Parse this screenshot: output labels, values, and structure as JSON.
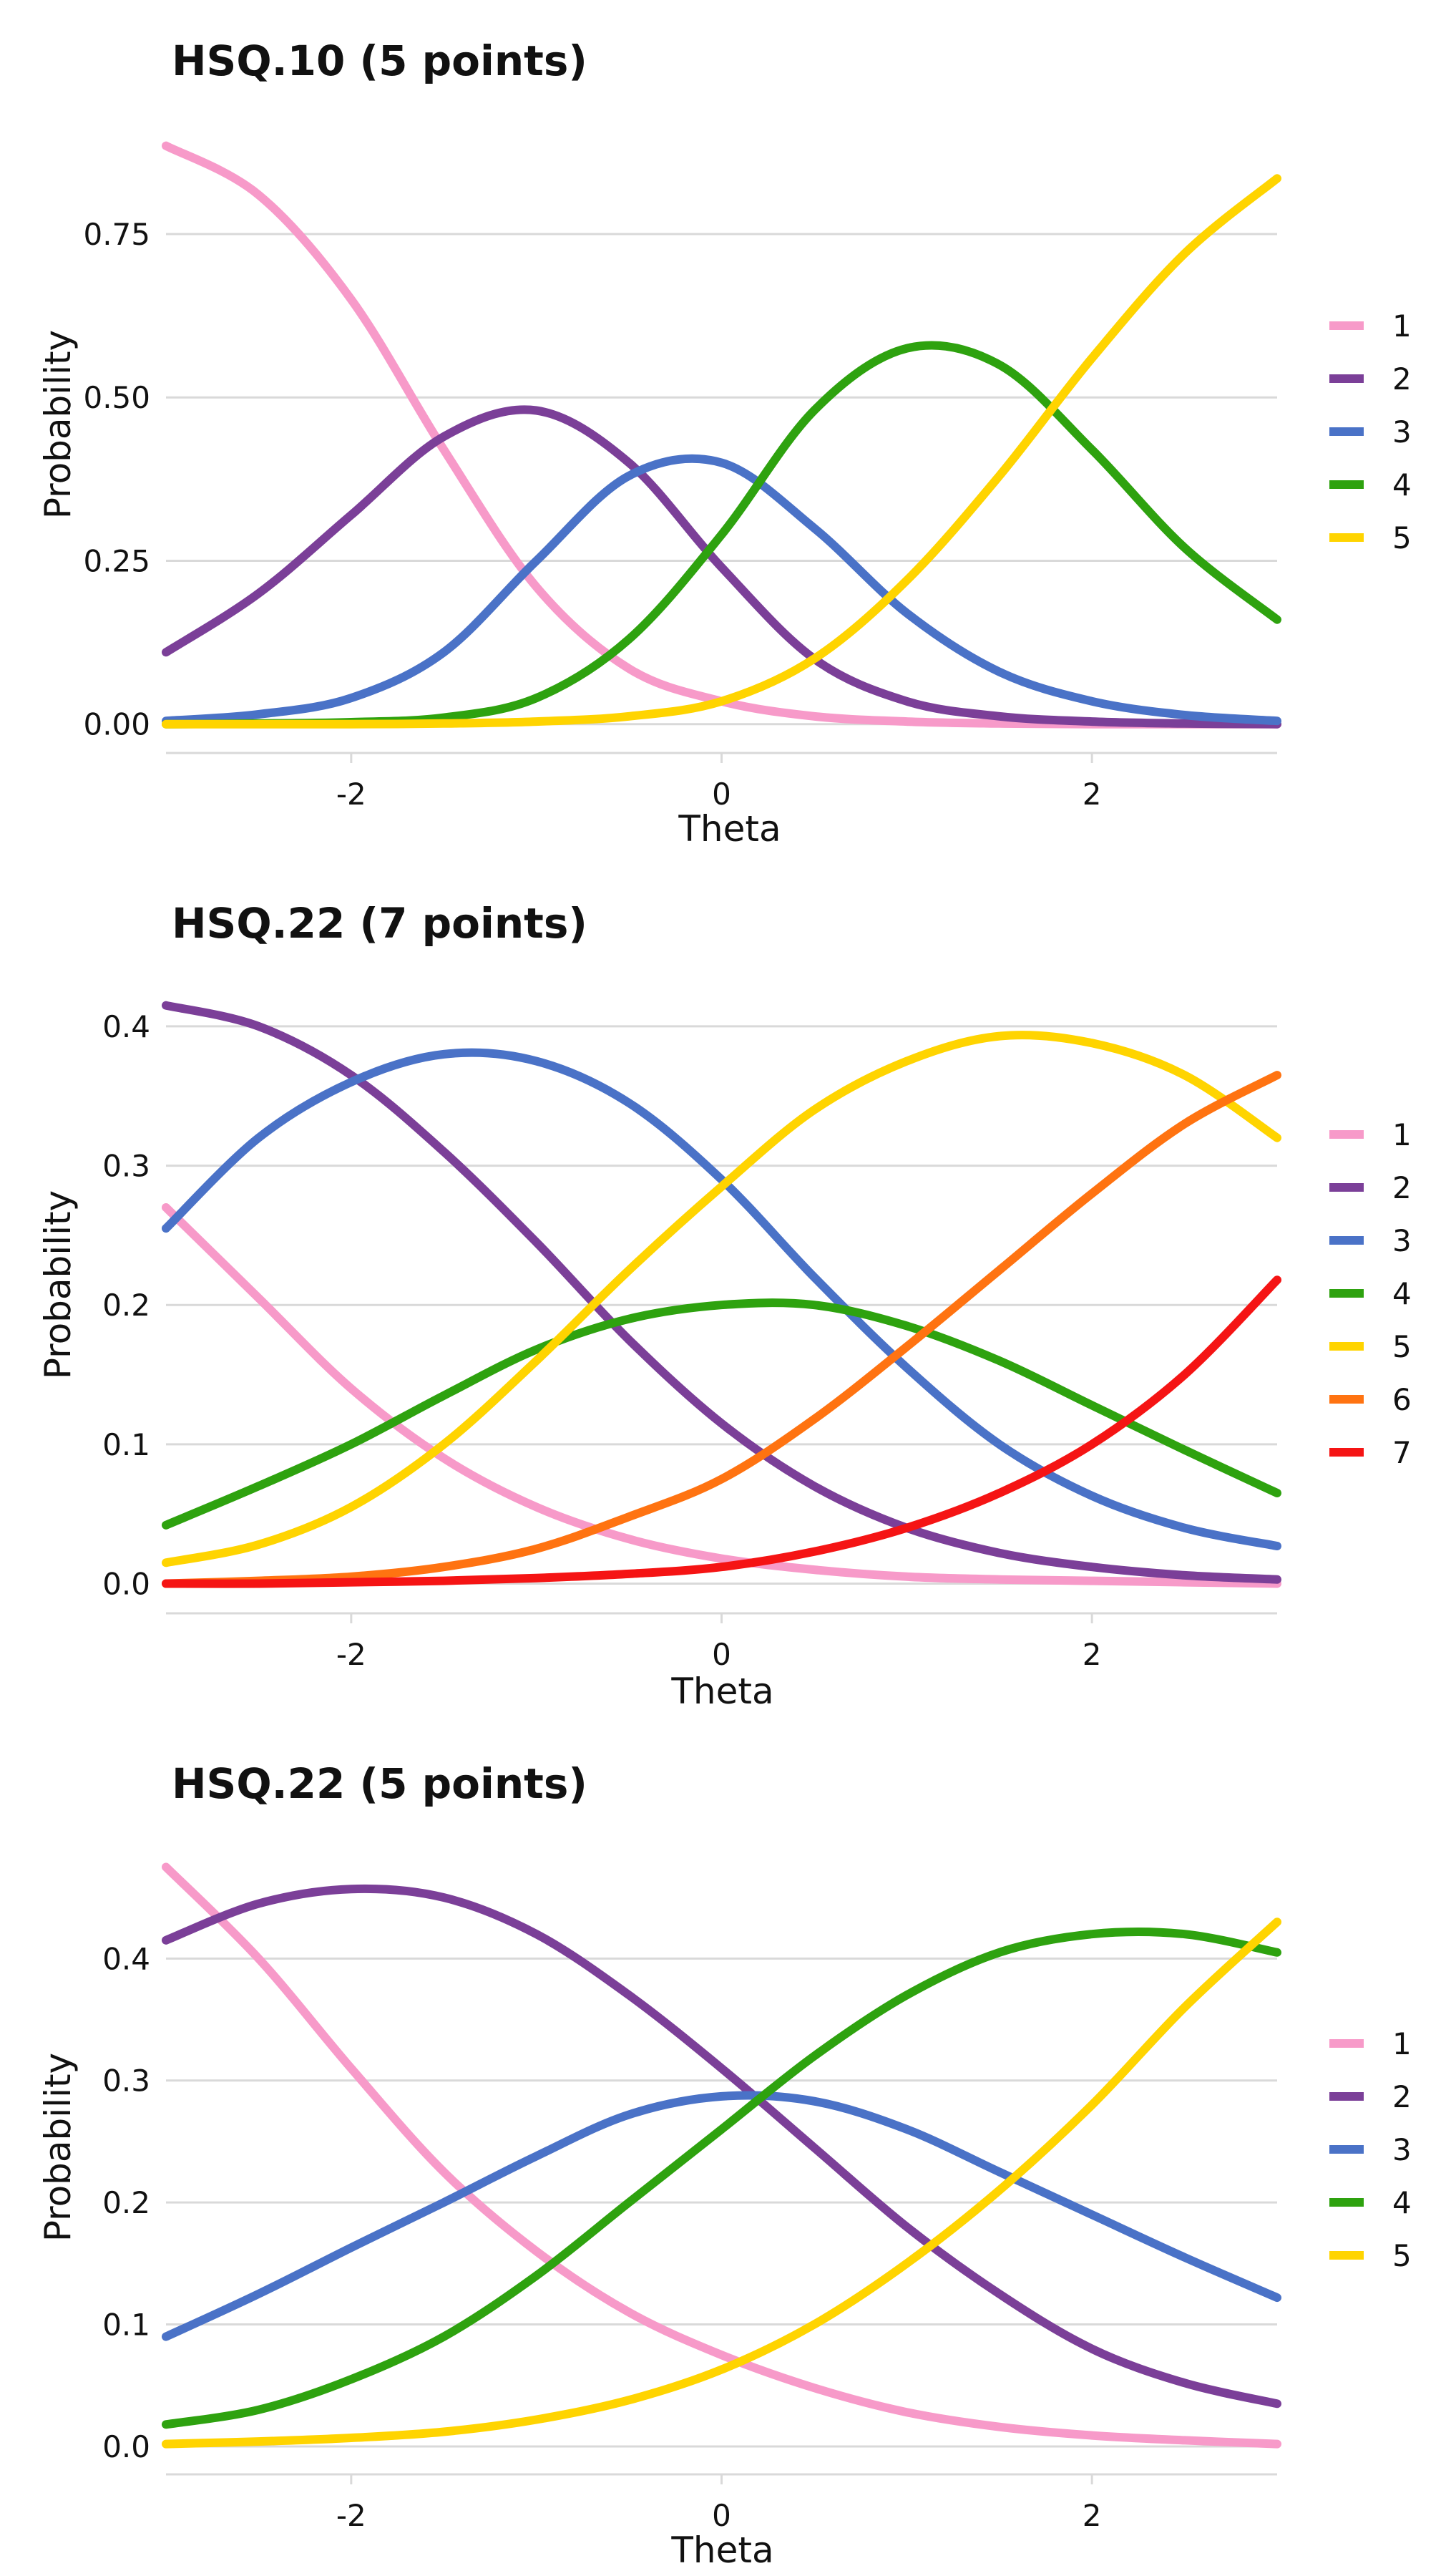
{
  "colors": {
    "c1": "#f79ac9",
    "c2": "#7b3f98",
    "c3": "#4a72c7",
    "c4": "#2ea20f",
    "c5": "#ffd400",
    "c6": "#ff7311",
    "c7": "#f51414",
    "grid": "#d9d9d9",
    "text": "#111111"
  },
  "chart_data": [
    {
      "type": "line",
      "title": "HSQ.10 (5 points)",
      "xlabel": "Theta",
      "ylabel": "Probability",
      "xlim": [
        -3,
        3
      ],
      "ylim": [
        -0.02,
        0.9
      ],
      "xticks": [
        -2,
        0,
        2
      ],
      "xtick_labels": [
        "-2",
        "0",
        "2"
      ],
      "yticks": [
        0,
        0.25,
        0.5,
        0.75
      ],
      "ytick_labels": [
        "0.00",
        "0.25",
        "0.50",
        "0.75"
      ],
      "legend_position": "right",
      "x": [
        -3,
        -2.5,
        -2,
        -1.5,
        -1,
        -0.5,
        0,
        0.5,
        1,
        1.5,
        2,
        2.5,
        3
      ],
      "series": [
        {
          "name": "1",
          "color": "#f79ac9",
          "values": [
            0.885,
            0.81,
            0.65,
            0.42,
            0.21,
            0.085,
            0.035,
            0.012,
            0.004,
            0.001,
            0.0,
            0.0,
            0.0
          ]
        },
        {
          "name": "2",
          "color": "#7b3f98",
          "values": [
            0.11,
            0.2,
            0.32,
            0.44,
            0.48,
            0.4,
            0.24,
            0.1,
            0.035,
            0.012,
            0.004,
            0.001,
            0.0
          ]
        },
        {
          "name": "3",
          "color": "#4a72c7",
          "values": [
            0.005,
            0.015,
            0.04,
            0.11,
            0.25,
            0.38,
            0.4,
            0.3,
            0.17,
            0.08,
            0.035,
            0.014,
            0.005
          ]
        },
        {
          "name": "4",
          "color": "#2ea20f",
          "values": [
            0.0,
            0.001,
            0.003,
            0.01,
            0.04,
            0.13,
            0.29,
            0.48,
            0.575,
            0.55,
            0.42,
            0.27,
            0.16
          ]
        },
        {
          "name": "5",
          "color": "#ffd400",
          "values": [
            0.0,
            0.0,
            0.0,
            0.001,
            0.004,
            0.012,
            0.035,
            0.1,
            0.22,
            0.38,
            0.56,
            0.72,
            0.835
          ]
        }
      ]
    },
    {
      "type": "line",
      "title": "HSQ.22 (7 points)",
      "xlabel": "Theta",
      "ylabel": "Probability",
      "xlim": [
        -3,
        3
      ],
      "ylim": [
        -0.01,
        0.42
      ],
      "xticks": [
        -2,
        0,
        2
      ],
      "xtick_labels": [
        "-2",
        "0",
        "2"
      ],
      "yticks": [
        0,
        0.1,
        0.2,
        0.3,
        0.4
      ],
      "ytick_labels": [
        "0.0",
        "0.1",
        "0.2",
        "0.3",
        "0.4"
      ],
      "legend_position": "right",
      "x": [
        -3,
        -2.5,
        -2,
        -1.5,
        -1,
        -0.5,
        0,
        0.5,
        1,
        1.5,
        2,
        2.5,
        3
      ],
      "series": [
        {
          "name": "1",
          "color": "#f79ac9",
          "values": [
            0.27,
            0.205,
            0.14,
            0.09,
            0.055,
            0.032,
            0.018,
            0.01,
            0.005,
            0.003,
            0.002,
            0.001,
            0.0
          ]
        },
        {
          "name": "2",
          "color": "#7b3f98",
          "values": [
            0.415,
            0.4,
            0.365,
            0.31,
            0.245,
            0.175,
            0.115,
            0.07,
            0.04,
            0.022,
            0.012,
            0.006,
            0.003
          ]
        },
        {
          "name": "3",
          "color": "#4a72c7",
          "values": [
            0.255,
            0.32,
            0.36,
            0.38,
            0.375,
            0.345,
            0.29,
            0.22,
            0.155,
            0.1,
            0.063,
            0.04,
            0.027
          ]
        },
        {
          "name": "4",
          "color": "#2ea20f",
          "values": [
            0.042,
            0.07,
            0.1,
            0.135,
            0.168,
            0.19,
            0.2,
            0.2,
            0.185,
            0.16,
            0.128,
            0.096,
            0.065
          ]
        },
        {
          "name": "5",
          "color": "#ffd400",
          "values": [
            0.015,
            0.028,
            0.055,
            0.1,
            0.16,
            0.225,
            0.285,
            0.34,
            0.375,
            0.393,
            0.388,
            0.365,
            0.32
          ]
        },
        {
          "name": "6",
          "color": "#ff7311",
          "values": [
            0.0,
            0.002,
            0.005,
            0.012,
            0.025,
            0.048,
            0.075,
            0.118,
            0.17,
            0.225,
            0.28,
            0.33,
            0.365
          ]
        },
        {
          "name": "7",
          "color": "#f51414",
          "values": [
            0.0,
            0.0,
            0.001,
            0.002,
            0.004,
            0.007,
            0.012,
            0.023,
            0.04,
            0.065,
            0.1,
            0.15,
            0.218
          ]
        }
      ]
    },
    {
      "type": "line",
      "title": "HSQ.22 (5 points)",
      "xlabel": "Theta",
      "ylabel": "Probability",
      "xlim": [
        -3,
        3
      ],
      "ylim": [
        -0.01,
        0.48
      ],
      "xticks": [
        -2,
        0,
        2
      ],
      "xtick_labels": [
        "-2",
        "0",
        "2"
      ],
      "yticks": [
        0,
        0.1,
        0.2,
        0.3,
        0.4
      ],
      "ytick_labels": [
        "0.0",
        "0.1",
        "0.2",
        "0.3",
        "0.4"
      ],
      "legend_position": "right",
      "x": [
        -3,
        -2.5,
        -2,
        -1.5,
        -1,
        -0.5,
        0,
        0.5,
        1,
        1.5,
        2,
        2.5,
        3
      ],
      "series": [
        {
          "name": "1",
          "color": "#f79ac9",
          "values": [
            0.475,
            0.4,
            0.31,
            0.225,
            0.16,
            0.11,
            0.075,
            0.048,
            0.028,
            0.016,
            0.009,
            0.005,
            0.002
          ]
        },
        {
          "name": "2",
          "color": "#7b3f98",
          "values": [
            0.415,
            0.445,
            0.457,
            0.45,
            0.42,
            0.37,
            0.31,
            0.245,
            0.18,
            0.125,
            0.08,
            0.052,
            0.035
          ]
        },
        {
          "name": "3",
          "color": "#4a72c7",
          "values": [
            0.09,
            0.125,
            0.163,
            0.2,
            0.238,
            0.272,
            0.287,
            0.283,
            0.26,
            0.225,
            0.19,
            0.155,
            0.122
          ]
        },
        {
          "name": "4",
          "color": "#2ea20f",
          "values": [
            0.018,
            0.03,
            0.055,
            0.09,
            0.14,
            0.2,
            0.26,
            0.32,
            0.37,
            0.405,
            0.42,
            0.42,
            0.405
          ]
        },
        {
          "name": "5",
          "color": "#ffd400",
          "values": [
            0.002,
            0.004,
            0.007,
            0.012,
            0.022,
            0.038,
            0.063,
            0.1,
            0.15,
            0.21,
            0.28,
            0.36,
            0.43
          ]
        }
      ]
    }
  ]
}
